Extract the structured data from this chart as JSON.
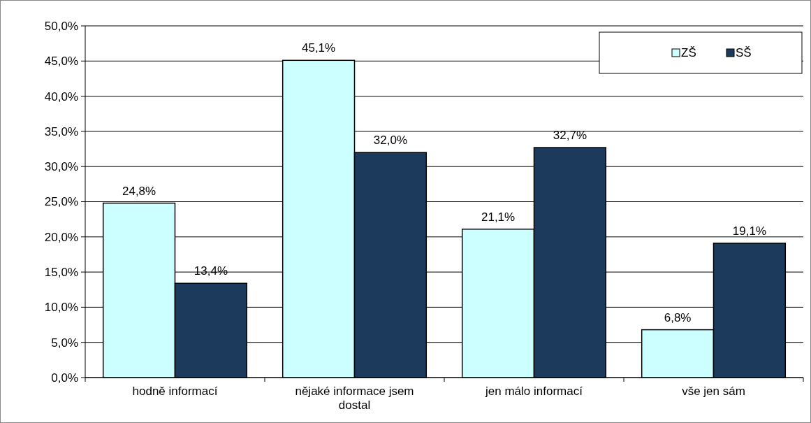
{
  "chart_data": {
    "type": "bar",
    "categories": [
      "hodně informací",
      "nějaké informace jsem dostal",
      "jen málo informací",
      "vše jen sám"
    ],
    "series": [
      {
        "name": "ZŠ",
        "color": "#ccffff",
        "values": [
          24.8,
          45.1,
          21.1,
          6.8
        ],
        "value_labels": [
          "24,8%",
          "45,1%",
          "21,1%",
          "6,8%"
        ]
      },
      {
        "name": "SŠ",
        "color": "#1b3a5c",
        "values": [
          13.4,
          32.0,
          32.7,
          19.1
        ],
        "value_labels": [
          "13,4%",
          "32,0%",
          "32,7%",
          "19,1%"
        ]
      }
    ],
    "ylim": [
      0,
      50
    ],
    "yticks": [
      {
        "value": 0,
        "label": "0,0%"
      },
      {
        "value": 5,
        "label": "5,0%"
      },
      {
        "value": 10,
        "label": "10,0%"
      },
      {
        "value": 15,
        "label": "15,0%"
      },
      {
        "value": 20,
        "label": "20,0%"
      },
      {
        "value": 25,
        "label": "25,0%"
      },
      {
        "value": 30,
        "label": "30,0%"
      },
      {
        "value": 35,
        "label": "35,0%"
      },
      {
        "value": 40,
        "label": "40,0%"
      },
      {
        "value": 45,
        "label": "45,0%"
      },
      {
        "value": 50,
        "label": "50,0%"
      }
    ],
    "grid": "y",
    "legend": "top right"
  }
}
